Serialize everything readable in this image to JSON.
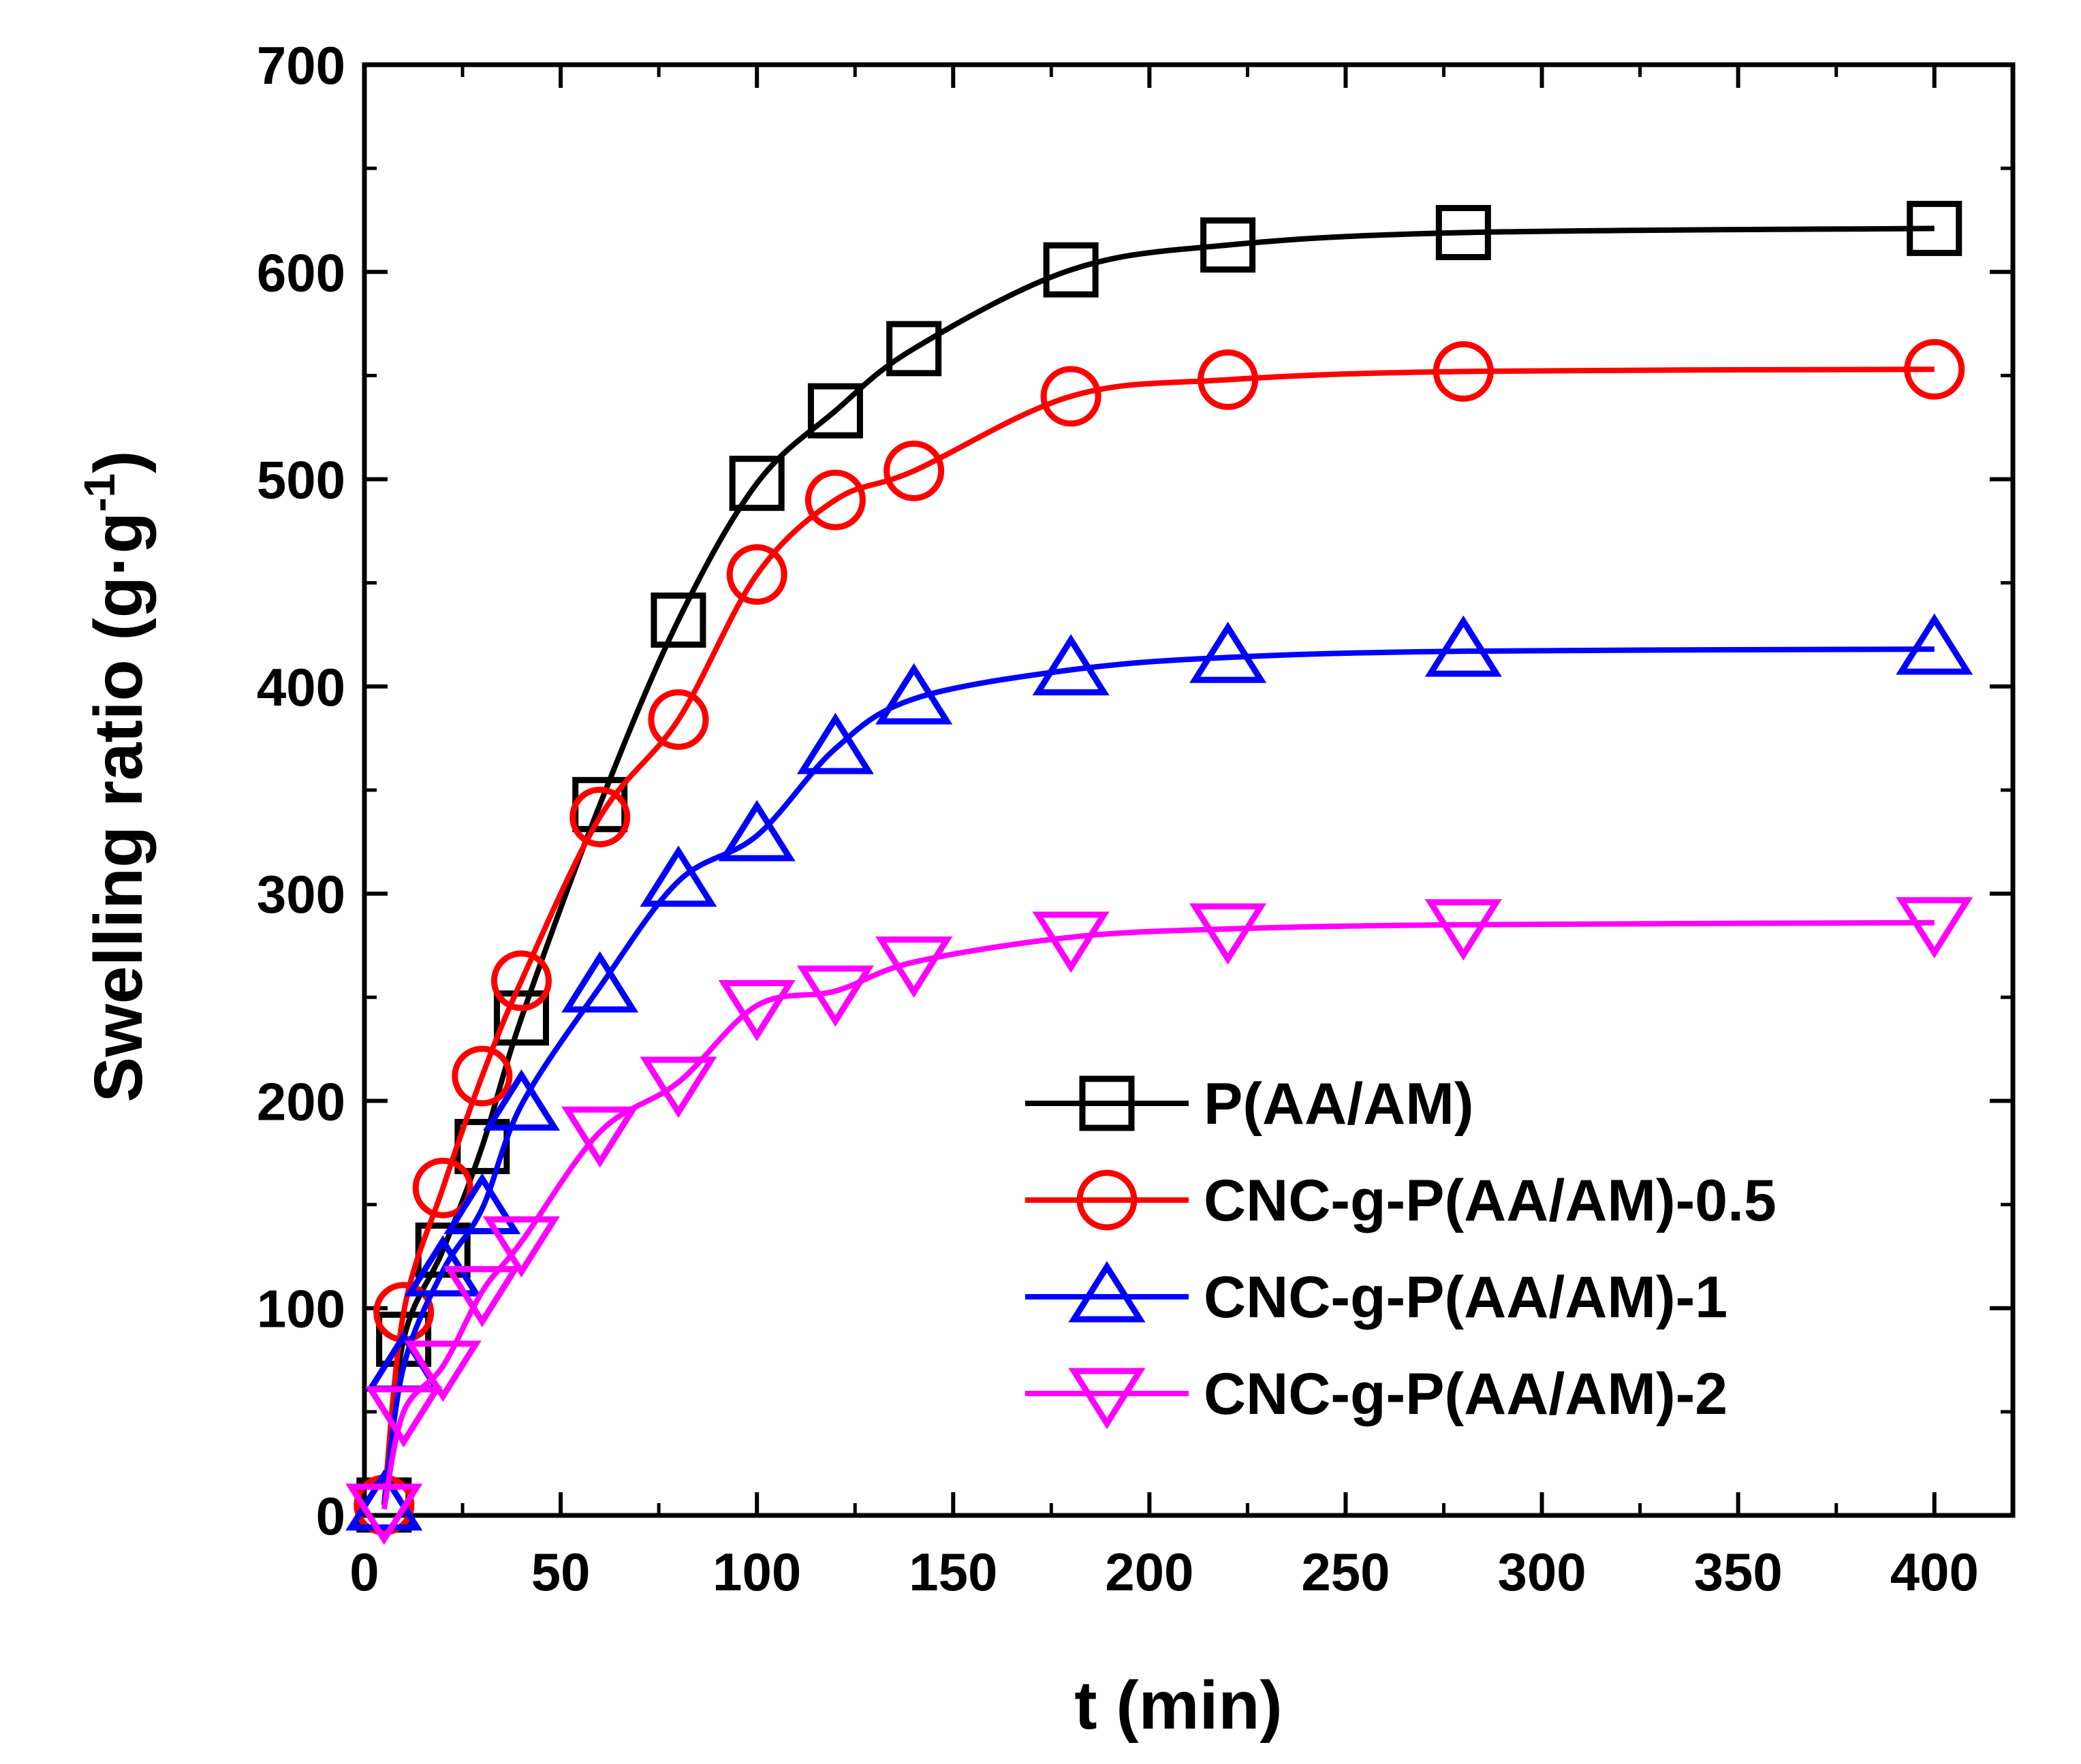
{
  "chart_data": {
    "type": "line",
    "title": "",
    "xlabel": "t (min)",
    "ylabel": "Swelling ratio (g·g",
    "ylabel_sup": "-1",
    "ylabel_close": ")",
    "xlim": [
      0,
      420
    ],
    "ylim": [
      0,
      700
    ],
    "xticks": [
      0,
      50,
      100,
      150,
      200,
      250,
      300,
      350,
      400
    ],
    "yticks": [
      0,
      100,
      200,
      300,
      400,
      500,
      600,
      700
    ],
    "legend_position": "lower-right",
    "series": [
      {
        "name": "P(AA/AM)",
        "color": "#000000",
        "marker": "square",
        "x": [
          5,
          10,
          20,
          30,
          40,
          60,
          80,
          100,
          120,
          140,
          180,
          220,
          280,
          400
        ],
        "y": [
          5,
          85,
          128,
          178,
          240,
          343,
          432,
          498,
          533,
          563,
          601,
          613,
          619,
          621
        ]
      },
      {
        "name": "CNC-g-P(AA/AM)-0.5",
        "color": "#ff0000",
        "marker": "circle",
        "x": [
          5,
          10,
          20,
          30,
          40,
          60,
          80,
          100,
          120,
          140,
          180,
          220,
          280,
          400
        ],
        "y": [
          5,
          98,
          158,
          212,
          258,
          337,
          384,
          454,
          490,
          504,
          540,
          548,
          552,
          553
        ]
      },
      {
        "name": "CNC-g-P(AA/AM)-1",
        "color": "#0000ff",
        "marker": "triangle-up",
        "x": [
          5,
          10,
          20,
          30,
          40,
          60,
          80,
          100,
          120,
          140,
          180,
          220,
          280,
          400
        ],
        "y": [
          5,
          72,
          118,
          148,
          198,
          255,
          306,
          328,
          370,
          394,
          408,
          414,
          417,
          418
        ]
      },
      {
        "name": "CNC-g-P(AA/AM)-2",
        "color": "#ff00ff",
        "marker": "triangle-down",
        "x": [
          5,
          10,
          20,
          30,
          40,
          60,
          80,
          100,
          120,
          140,
          180,
          220,
          280,
          400
        ],
        "y": [
          3,
          50,
          72,
          108,
          132,
          185,
          209,
          246,
          253,
          267,
          279,
          283,
          285,
          286
        ]
      }
    ]
  }
}
